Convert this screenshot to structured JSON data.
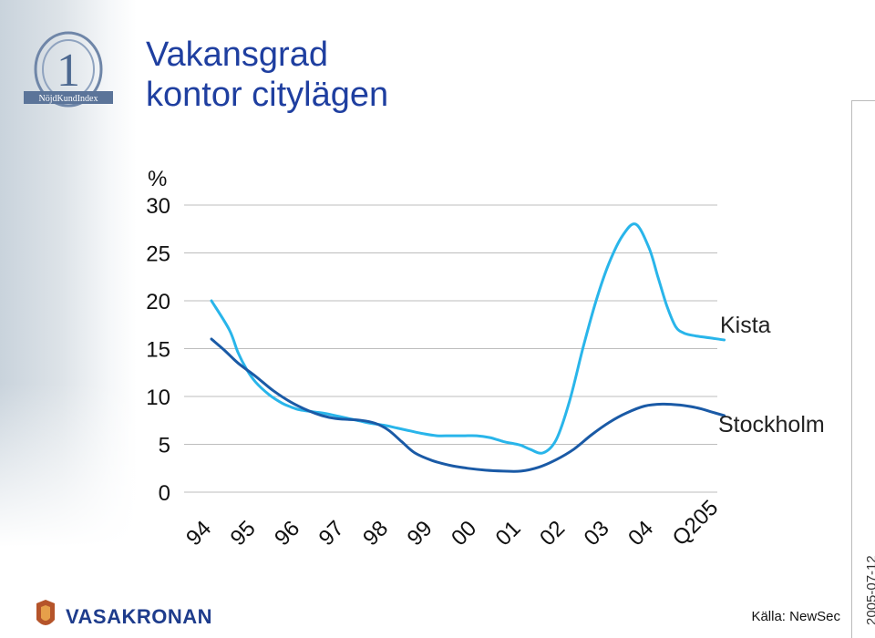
{
  "header": {
    "title_line1": "Vakansgrad",
    "title_line2": "kontor citylägen"
  },
  "logo": {
    "numeral": "1",
    "text": "NöjdKundIndex"
  },
  "footer": {
    "company": "VASAKRONAN",
    "source": "Källa: NewSec",
    "date": "2005-07-12"
  },
  "colors": {
    "kista": "#29b5ea",
    "stockholm": "#1a5aa6",
    "title": "#1f3fa0"
  },
  "chart_data": {
    "type": "line",
    "unit_label": "%",
    "ylim": [
      0,
      30
    ],
    "yticks": [
      0,
      5,
      10,
      15,
      20,
      25,
      30
    ],
    "categories": [
      "94",
      "95",
      "96",
      "97",
      "98",
      "99",
      "00",
      "01",
      "02",
      "03",
      "04",
      "Q205"
    ],
    "grid": false,
    "series": [
      {
        "name": "Kista",
        "x": [
          0,
          0.4,
          0.6,
          0.8,
          1,
          1.3,
          1.6,
          1.8,
          2,
          2.3,
          2.6,
          2.8,
          3,
          3.3,
          3.6,
          3.9,
          4.2,
          4.5,
          4.8,
          5.1,
          5.4,
          5.7,
          6,
          6.3,
          6.6,
          6.8,
          7,
          7.2,
          7.5,
          7.8,
          8.1,
          8.4,
          8.7,
          9,
          9.3,
          9.6,
          9.9,
          10.1,
          10.3,
          10.5,
          10.7,
          11,
          11.3,
          11.6
        ],
        "y": [
          20,
          17,
          14.6,
          12.8,
          11.5,
          10.2,
          9.3,
          8.9,
          8.6,
          8.4,
          8.2,
          8.0,
          7.8,
          7.5,
          7.2,
          7.0,
          6.7,
          6.4,
          6.1,
          5.9,
          5.9,
          5.9,
          5.9,
          5.7,
          5.3,
          5.1,
          4.9,
          4.5,
          4.1,
          5.5,
          9.5,
          15,
          20,
          24,
          26.8,
          28,
          25.5,
          22.5,
          19.5,
          17.3,
          16.6,
          16.3,
          16.1,
          15.9
        ]
      },
      {
        "name": "Stockholm",
        "x": [
          0,
          0.3,
          0.6,
          1,
          1.4,
          1.8,
          2.2,
          2.5,
          2.8,
          3.1,
          3.4,
          3.7,
          4,
          4.3,
          4.6,
          5,
          5.4,
          5.8,
          6.2,
          6.6,
          7,
          7.4,
          7.8,
          8.2,
          8.6,
          9,
          9.4,
          9.8,
          10.2,
          10.6,
          11,
          11.3,
          11.6
        ],
        "y": [
          16,
          14.8,
          13.5,
          12.1,
          10.6,
          9.4,
          8.5,
          8.0,
          7.7,
          7.6,
          7.5,
          7.2,
          6.5,
          5.3,
          4.1,
          3.3,
          2.8,
          2.5,
          2.3,
          2.2,
          2.2,
          2.6,
          3.4,
          4.5,
          6.0,
          7.3,
          8.3,
          9.0,
          9.2,
          9.1,
          8.8,
          8.4,
          8.0
        ]
      }
    ]
  }
}
